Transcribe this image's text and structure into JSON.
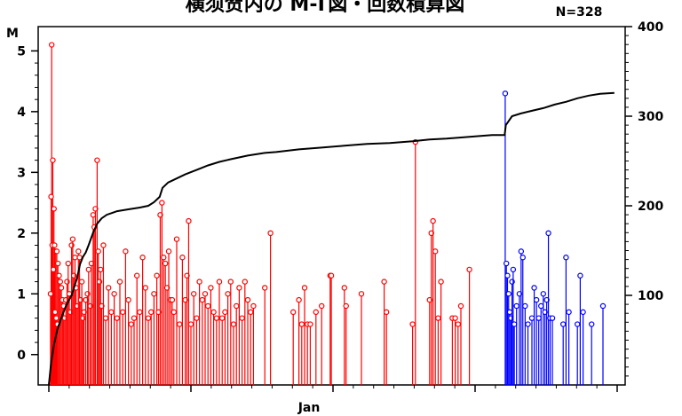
{
  "chart_data": {
    "type": "line",
    "title": "横须贺内の M-T図・回数積算図",
    "count_label": "N=328",
    "xlabel": "Jan",
    "ylabel_left": "M",
    "ylim_left": [
      -0.5,
      5.4
    ],
    "ylim_right": [
      0,
      400
    ],
    "yticks_left": [
      0,
      1,
      2,
      3,
      4,
      5
    ],
    "yticks_right": [
      100,
      200,
      300,
      400
    ],
    "x_range": [
      0,
      100
    ],
    "grid": false,
    "colors": {
      "period1": "#ff0000",
      "period2": "#0000ff",
      "cumulative": "#000000"
    },
    "series": [
      {
        "color_key": "period1",
        "points": [
          [
            0.5,
            5.1
          ],
          [
            0.7,
            3.2
          ],
          [
            0.4,
            2.6
          ],
          [
            0.9,
            2.4
          ],
          [
            0.6,
            1.8
          ],
          [
            1.0,
            1.8
          ],
          [
            1.2,
            1.7
          ],
          [
            1.4,
            1.7
          ],
          [
            1.6,
            1.5
          ],
          [
            0.8,
            1.4
          ],
          [
            1.8,
            1.3
          ],
          [
            2.0,
            1.2
          ],
          [
            2.2,
            1.1
          ],
          [
            0.3,
            1.0
          ],
          [
            2.4,
            0.9
          ],
          [
            2.6,
            0.8
          ],
          [
            1.1,
            0.7
          ],
          [
            1.3,
            0.6
          ],
          [
            1.5,
            0.5
          ],
          [
            2.8,
            0.6
          ],
          [
            3.0,
            0.9
          ],
          [
            3.2,
            1.2
          ],
          [
            3.4,
            1.5
          ],
          [
            3.6,
            1.0
          ],
          [
            3.8,
            0.7
          ],
          [
            4.0,
            1.8
          ],
          [
            4.2,
            1.9
          ],
          [
            4.4,
            1.3
          ],
          [
            4.6,
            1.6
          ],
          [
            4.8,
            1.1
          ],
          [
            5.0,
            0.8
          ],
          [
            5.2,
            1.7
          ],
          [
            5.4,
            1.6
          ],
          [
            5.6,
            0.9
          ],
          [
            5.8,
            1.2
          ],
          [
            6.0,
            0.6
          ],
          [
            6.2,
            0.7
          ],
          [
            6.5,
            0.9
          ],
          [
            6.8,
            1.0
          ],
          [
            7.0,
            1.4
          ],
          [
            7.3,
            0.8
          ],
          [
            7.5,
            1.5
          ],
          [
            7.8,
            2.3
          ],
          [
            8.0,
            2.1
          ],
          [
            8.2,
            2.4
          ],
          [
            8.5,
            3.2
          ],
          [
            8.7,
            1.7
          ],
          [
            8.9,
            1.2
          ],
          [
            9.1,
            1.4
          ],
          [
            9.3,
            0.8
          ],
          [
            9.6,
            1.8
          ],
          [
            10.0,
            0.6
          ],
          [
            10.5,
            1.1
          ],
          [
            11.0,
            0.7
          ],
          [
            11.5,
            1.0
          ],
          [
            12.0,
            0.6
          ],
          [
            12.5,
            1.2
          ],
          [
            13.0,
            0.7
          ],
          [
            13.5,
            1.7
          ],
          [
            14.0,
            0.9
          ],
          [
            14.5,
            0.5
          ],
          [
            15.0,
            0.6
          ],
          [
            15.5,
            1.3
          ],
          [
            16.0,
            0.7
          ],
          [
            16.5,
            1.6
          ],
          [
            17.0,
            1.1
          ],
          [
            17.5,
            0.6
          ],
          [
            18.0,
            0.7
          ],
          [
            18.5,
            1.0
          ],
          [
            19.0,
            1.3
          ],
          [
            19.3,
            0.7
          ],
          [
            19.6,
            2.3
          ],
          [
            19.9,
            2.5
          ],
          [
            20.2,
            1.6
          ],
          [
            20.5,
            1.5
          ],
          [
            20.8,
            1.1
          ],
          [
            21.1,
            1.7
          ],
          [
            21.4,
            0.9
          ],
          [
            21.7,
            0.9
          ],
          [
            22.0,
            0.7
          ],
          [
            22.5,
            1.9
          ],
          [
            23.0,
            0.5
          ],
          [
            23.5,
            1.6
          ],
          [
            24.0,
            0.9
          ],
          [
            24.3,
            1.3
          ],
          [
            24.6,
            2.2
          ],
          [
            25.0,
            0.5
          ],
          [
            25.5,
            1.0
          ],
          [
            26.0,
            0.6
          ],
          [
            26.5,
            1.2
          ],
          [
            27.0,
            0.9
          ],
          [
            27.5,
            1.0
          ],
          [
            28.0,
            0.8
          ],
          [
            28.5,
            1.1
          ],
          [
            29.0,
            0.7
          ],
          [
            29.5,
            0.6
          ],
          [
            30.0,
            1.2
          ],
          [
            30.5,
            0.6
          ],
          [
            31.0,
            0.7
          ],
          [
            31.5,
            1.0
          ],
          [
            32.0,
            1.2
          ],
          [
            32.5,
            0.5
          ],
          [
            33.0,
            0.8
          ],
          [
            33.5,
            1.1
          ],
          [
            34.0,
            0.6
          ],
          [
            34.5,
            1.2
          ],
          [
            35.0,
            0.9
          ],
          [
            35.5,
            0.7
          ],
          [
            36.0,
            0.8
          ],
          [
            38.0,
            1.1
          ],
          [
            39.0,
            2.0
          ],
          [
            43.0,
            0.7
          ],
          [
            44.0,
            0.9
          ],
          [
            44.5,
            0.5
          ],
          [
            45.0,
            1.1
          ],
          [
            45.5,
            0.5
          ],
          [
            46.0,
            0.5
          ],
          [
            47.0,
            0.7
          ],
          [
            48.0,
            0.8
          ],
          [
            49.5,
            1.3
          ],
          [
            49.7,
            1.3
          ],
          [
            52.0,
            1.1
          ],
          [
            52.3,
            0.8
          ],
          [
            55.0,
            1.0
          ],
          [
            59.0,
            1.2
          ],
          [
            59.4,
            0.7
          ],
          [
            64.0,
            0.5
          ],
          [
            64.5,
            3.5
          ],
          [
            67.0,
            0.9
          ],
          [
            67.3,
            2.0
          ],
          [
            67.6,
            2.2
          ],
          [
            68.0,
            1.7
          ],
          [
            68.5,
            0.6
          ],
          [
            69.0,
            1.2
          ],
          [
            71.0,
            0.6
          ],
          [
            71.5,
            0.6
          ],
          [
            72.0,
            0.5
          ],
          [
            72.5,
            0.8
          ],
          [
            74.0,
            1.4
          ]
        ]
      },
      {
        "color_key": "period2",
        "points": [
          [
            80.3,
            4.3
          ],
          [
            80.5,
            1.5
          ],
          [
            80.7,
            1.3
          ],
          [
            80.9,
            1.0
          ],
          [
            81.1,
            0.7
          ],
          [
            81.3,
            0.6
          ],
          [
            81.5,
            1.2
          ],
          [
            81.7,
            1.4
          ],
          [
            81.9,
            0.5
          ],
          [
            82.3,
            0.8
          ],
          [
            82.8,
            1.0
          ],
          [
            83.1,
            1.7
          ],
          [
            83.4,
            1.6
          ],
          [
            83.8,
            0.8
          ],
          [
            84.3,
            0.5
          ],
          [
            85.0,
            0.6
          ],
          [
            85.4,
            1.1
          ],
          [
            85.8,
            0.9
          ],
          [
            86.2,
            0.6
          ],
          [
            86.6,
            0.8
          ],
          [
            87.0,
            1.0
          ],
          [
            87.3,
            0.7
          ],
          [
            87.6,
            0.9
          ],
          [
            87.9,
            2.0
          ],
          [
            88.2,
            0.6
          ],
          [
            88.6,
            0.6
          ],
          [
            90.5,
            0.5
          ],
          [
            91.0,
            1.6
          ],
          [
            91.5,
            0.7
          ],
          [
            93.0,
            0.5
          ],
          [
            93.5,
            1.3
          ],
          [
            94.0,
            0.7
          ],
          [
            95.5,
            0.5
          ],
          [
            97.5,
            0.8
          ]
        ]
      }
    ],
    "cumulative": {
      "color_key": "cumulative",
      "points": [
        [
          0,
          0
        ],
        [
          0.4,
          25
        ],
        [
          0.9,
          45
        ],
        [
          1.5,
          62
        ],
        [
          2.2,
          75
        ],
        [
          3.0,
          88
        ],
        [
          4.0,
          100
        ],
        [
          5.0,
          120
        ],
        [
          5.5,
          135
        ],
        [
          6.0,
          143
        ],
        [
          6.5,
          148
        ],
        [
          7.0,
          156
        ],
        [
          7.8,
          170
        ],
        [
          8.5,
          180
        ],
        [
          9.3,
          186
        ],
        [
          10.2,
          190
        ],
        [
          12.0,
          194
        ],
        [
          14.0,
          196
        ],
        [
          16.0,
          198
        ],
        [
          17.5,
          200
        ],
        [
          18.5,
          204
        ],
        [
          19.5,
          210
        ],
        [
          20.0,
          220
        ],
        [
          21.0,
          226
        ],
        [
          22.0,
          229
        ],
        [
          24.0,
          235
        ],
        [
          26.0,
          240
        ],
        [
          28.0,
          245
        ],
        [
          30.0,
          249
        ],
        [
          32.0,
          252
        ],
        [
          35.0,
          256
        ],
        [
          38.0,
          259
        ],
        [
          40.0,
          260
        ],
        [
          44.0,
          263
        ],
        [
          48.0,
          265
        ],
        [
          52.0,
          267
        ],
        [
          56.0,
          269
        ],
        [
          60.0,
          270
        ],
        [
          64.0,
          272
        ],
        [
          67.0,
          274
        ],
        [
          70.0,
          275
        ],
        [
          74.0,
          277
        ],
        [
          78.0,
          279
        ],
        [
          80.2,
          279
        ],
        [
          80.4,
          290
        ],
        [
          81.5,
          300
        ],
        [
          83.0,
          303
        ],
        [
          85.0,
          306
        ],
        [
          87.0,
          309
        ],
        [
          89.0,
          313
        ],
        [
          91.0,
          316
        ],
        [
          93.0,
          320
        ],
        [
          95.0,
          323
        ],
        [
          97.0,
          325
        ],
        [
          99.5,
          326
        ]
      ]
    }
  }
}
